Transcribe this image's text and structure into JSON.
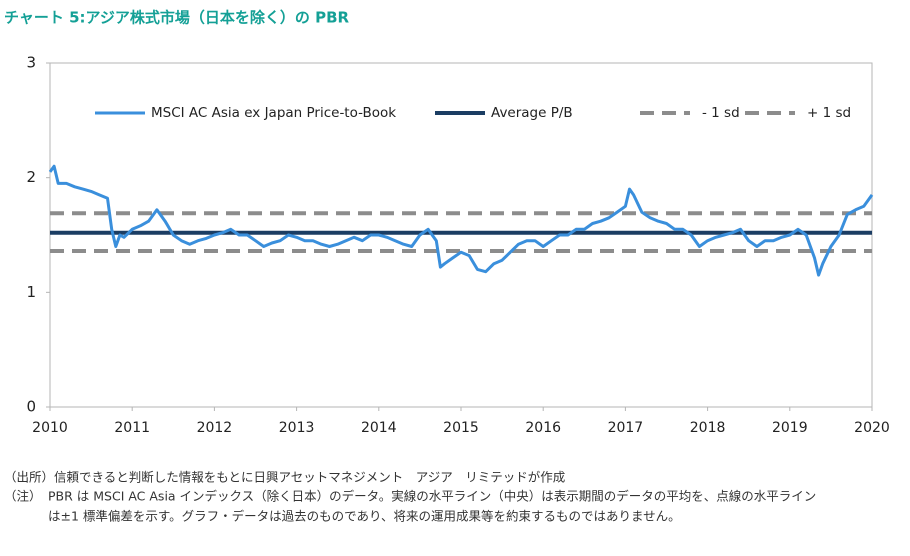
{
  "chart_data": {
    "type": "line",
    "title": "チャート 5:アジア株式市場（日本を除く）の PBR",
    "legend": "top",
    "xlim": [
      2010,
      2020
    ],
    "xticks": [
      2010,
      2011,
      2012,
      2013,
      2014,
      2015,
      2016,
      2017,
      2018,
      2019,
      2020
    ],
    "ylim": [
      0,
      3
    ],
    "yticks": [
      0,
      1,
      2,
      3
    ],
    "grid": false,
    "x": [
      2010.0,
      2010.05,
      2010.1,
      2010.2,
      2010.3,
      2010.4,
      2010.5,
      2010.6,
      2010.7,
      2010.75,
      2010.8,
      2010.85,
      2010.9,
      2011.0,
      2011.1,
      2011.2,
      2011.3,
      2011.4,
      2011.5,
      2011.6,
      2011.7,
      2011.8,
      2011.9,
      2012.0,
      2012.1,
      2012.2,
      2012.3,
      2012.4,
      2012.5,
      2012.6,
      2012.7,
      2012.8,
      2012.9,
      2013.0,
      2013.1,
      2013.2,
      2013.3,
      2013.4,
      2013.5,
      2013.6,
      2013.7,
      2013.8,
      2013.9,
      2014.0,
      2014.1,
      2014.2,
      2014.3,
      2014.4,
      2014.5,
      2014.6,
      2014.7,
      2014.75,
      2014.8,
      2014.9,
      2015.0,
      2015.1,
      2015.2,
      2015.3,
      2015.4,
      2015.5,
      2015.6,
      2015.7,
      2015.8,
      2015.9,
      2016.0,
      2016.1,
      2016.2,
      2016.3,
      2016.4,
      2016.5,
      2016.6,
      2016.7,
      2016.8,
      2016.9,
      2017.0,
      2017.05,
      2017.1,
      2017.2,
      2017.3,
      2017.4,
      2017.5,
      2017.6,
      2017.7,
      2017.8,
      2017.9,
      2018.0,
      2018.1,
      2018.2,
      2018.3,
      2018.4,
      2018.5,
      2018.6,
      2018.7,
      2018.8,
      2018.9,
      2019.0,
      2019.1,
      2019.2,
      2019.3,
      2019.35,
      2019.4,
      2019.5,
      2019.6,
      2019.7,
      2019.8,
      2019.9,
      2020.0
    ],
    "series": [
      {
        "name": "MSCI AC Asia ex Japan Price-to-Book",
        "color": "#3a8fdc",
        "values": [
          2.05,
          2.1,
          1.95,
          1.95,
          1.92,
          1.9,
          1.88,
          1.85,
          1.82,
          1.55,
          1.4,
          1.5,
          1.48,
          1.55,
          1.58,
          1.62,
          1.72,
          1.62,
          1.5,
          1.45,
          1.42,
          1.45,
          1.47,
          1.5,
          1.52,
          1.55,
          1.5,
          1.5,
          1.45,
          1.4,
          1.43,
          1.45,
          1.5,
          1.48,
          1.45,
          1.45,
          1.42,
          1.4,
          1.42,
          1.45,
          1.48,
          1.45,
          1.5,
          1.5,
          1.48,
          1.45,
          1.42,
          1.4,
          1.5,
          1.55,
          1.45,
          1.22,
          1.25,
          1.3,
          1.35,
          1.32,
          1.2,
          1.18,
          1.25,
          1.28,
          1.35,
          1.42,
          1.45,
          1.45,
          1.4,
          1.45,
          1.5,
          1.5,
          1.55,
          1.55,
          1.6,
          1.62,
          1.65,
          1.7,
          1.75,
          1.9,
          1.85,
          1.7,
          1.65,
          1.62,
          1.6,
          1.55,
          1.55,
          1.5,
          1.4,
          1.45,
          1.48,
          1.5,
          1.52,
          1.55,
          1.45,
          1.4,
          1.45,
          1.45,
          1.48,
          1.5,
          1.55,
          1.5,
          1.3,
          1.15,
          1.25,
          1.4,
          1.5,
          1.68,
          1.72,
          1.75,
          1.85
        ]
      }
    ],
    "reference_lines": [
      {
        "name": "Average P/B",
        "value": 1.52,
        "color": "#1b3d63",
        "dashed": false
      },
      {
        "name": "- 1 sd",
        "value": 1.36,
        "color": "#8c8c8c",
        "dashed": true
      },
      {
        "name": "+ 1 sd",
        "value": 1.69,
        "color": "#8c8c8c",
        "dashed": true
      }
    ]
  },
  "notes": [
    "（出所）信頼できると判断した情報をもとに日興アセットマネジメント　アジア　リミテッドが作成",
    "（注）",
    "PBR は MSCI AC Asia インデックス（除く日本）のデータ。実線の水平ライン（中央）は表示期間のデータの平均を、点線の水平ライン",
    "は±1 標準偏差を示す。グラフ・データは過去のものであり、将来の運用成果等を約束するものではありません。"
  ]
}
